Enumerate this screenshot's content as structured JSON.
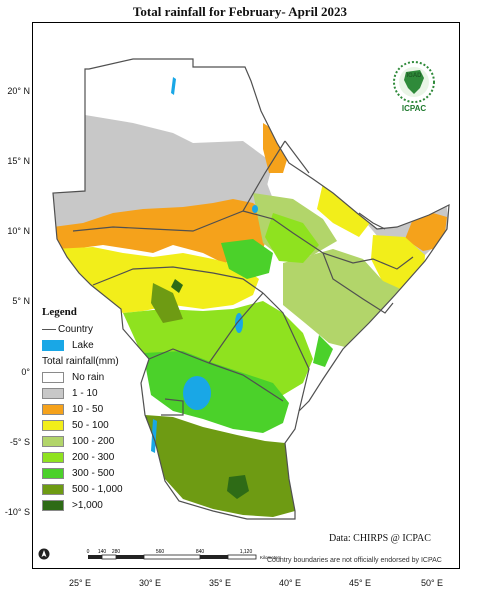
{
  "title": "Total rainfall  for  February- April  2023",
  "axes": {
    "latitude_labels": [
      "20° N",
      "15° N",
      "10° N",
      "5° N",
      "0°",
      "-5° S",
      "-10° S"
    ],
    "longitude_labels": [
      "25° E",
      "30° E",
      "35° E",
      "40° E",
      "45° E",
      "50° E"
    ]
  },
  "legend": {
    "title": "Legend",
    "country_label": "Country",
    "lake_label": "Lake",
    "rainfall_heading": "Total rainfall(mm)",
    "classes": [
      {
        "label": "No rain",
        "color": "#ffffff"
      },
      {
        "label": "1 - 10",
        "color": "#c8c8c8"
      },
      {
        "label": "10 - 50",
        "color": "#f5a21b"
      },
      {
        "label": "50 - 100",
        "color": "#f2ee1a"
      },
      {
        "label": "100 - 200",
        "color": "#b2d56a"
      },
      {
        "label": "200 - 300",
        "color": "#8fe21f"
      },
      {
        "label": "300 - 500",
        "color": "#4bd12a"
      },
      {
        "label": "500 - 1,000",
        "color": "#6e9b13"
      },
      {
        "label": ">1,000",
        "color": "#2e6b16"
      }
    ],
    "lake_color": "#19a7e6"
  },
  "logo": {
    "acronym": "IGAD",
    "label": "ICPAC"
  },
  "scale_bar": {
    "ticks": [
      "0",
      "140",
      "280",
      "560",
      "840",
      "1,120"
    ],
    "unit": "Kilometers"
  },
  "source": "Data: CHIRPS @ ICPAC",
  "disclaimer": "Country boundaries are not officially endorsed by ICPAC"
}
